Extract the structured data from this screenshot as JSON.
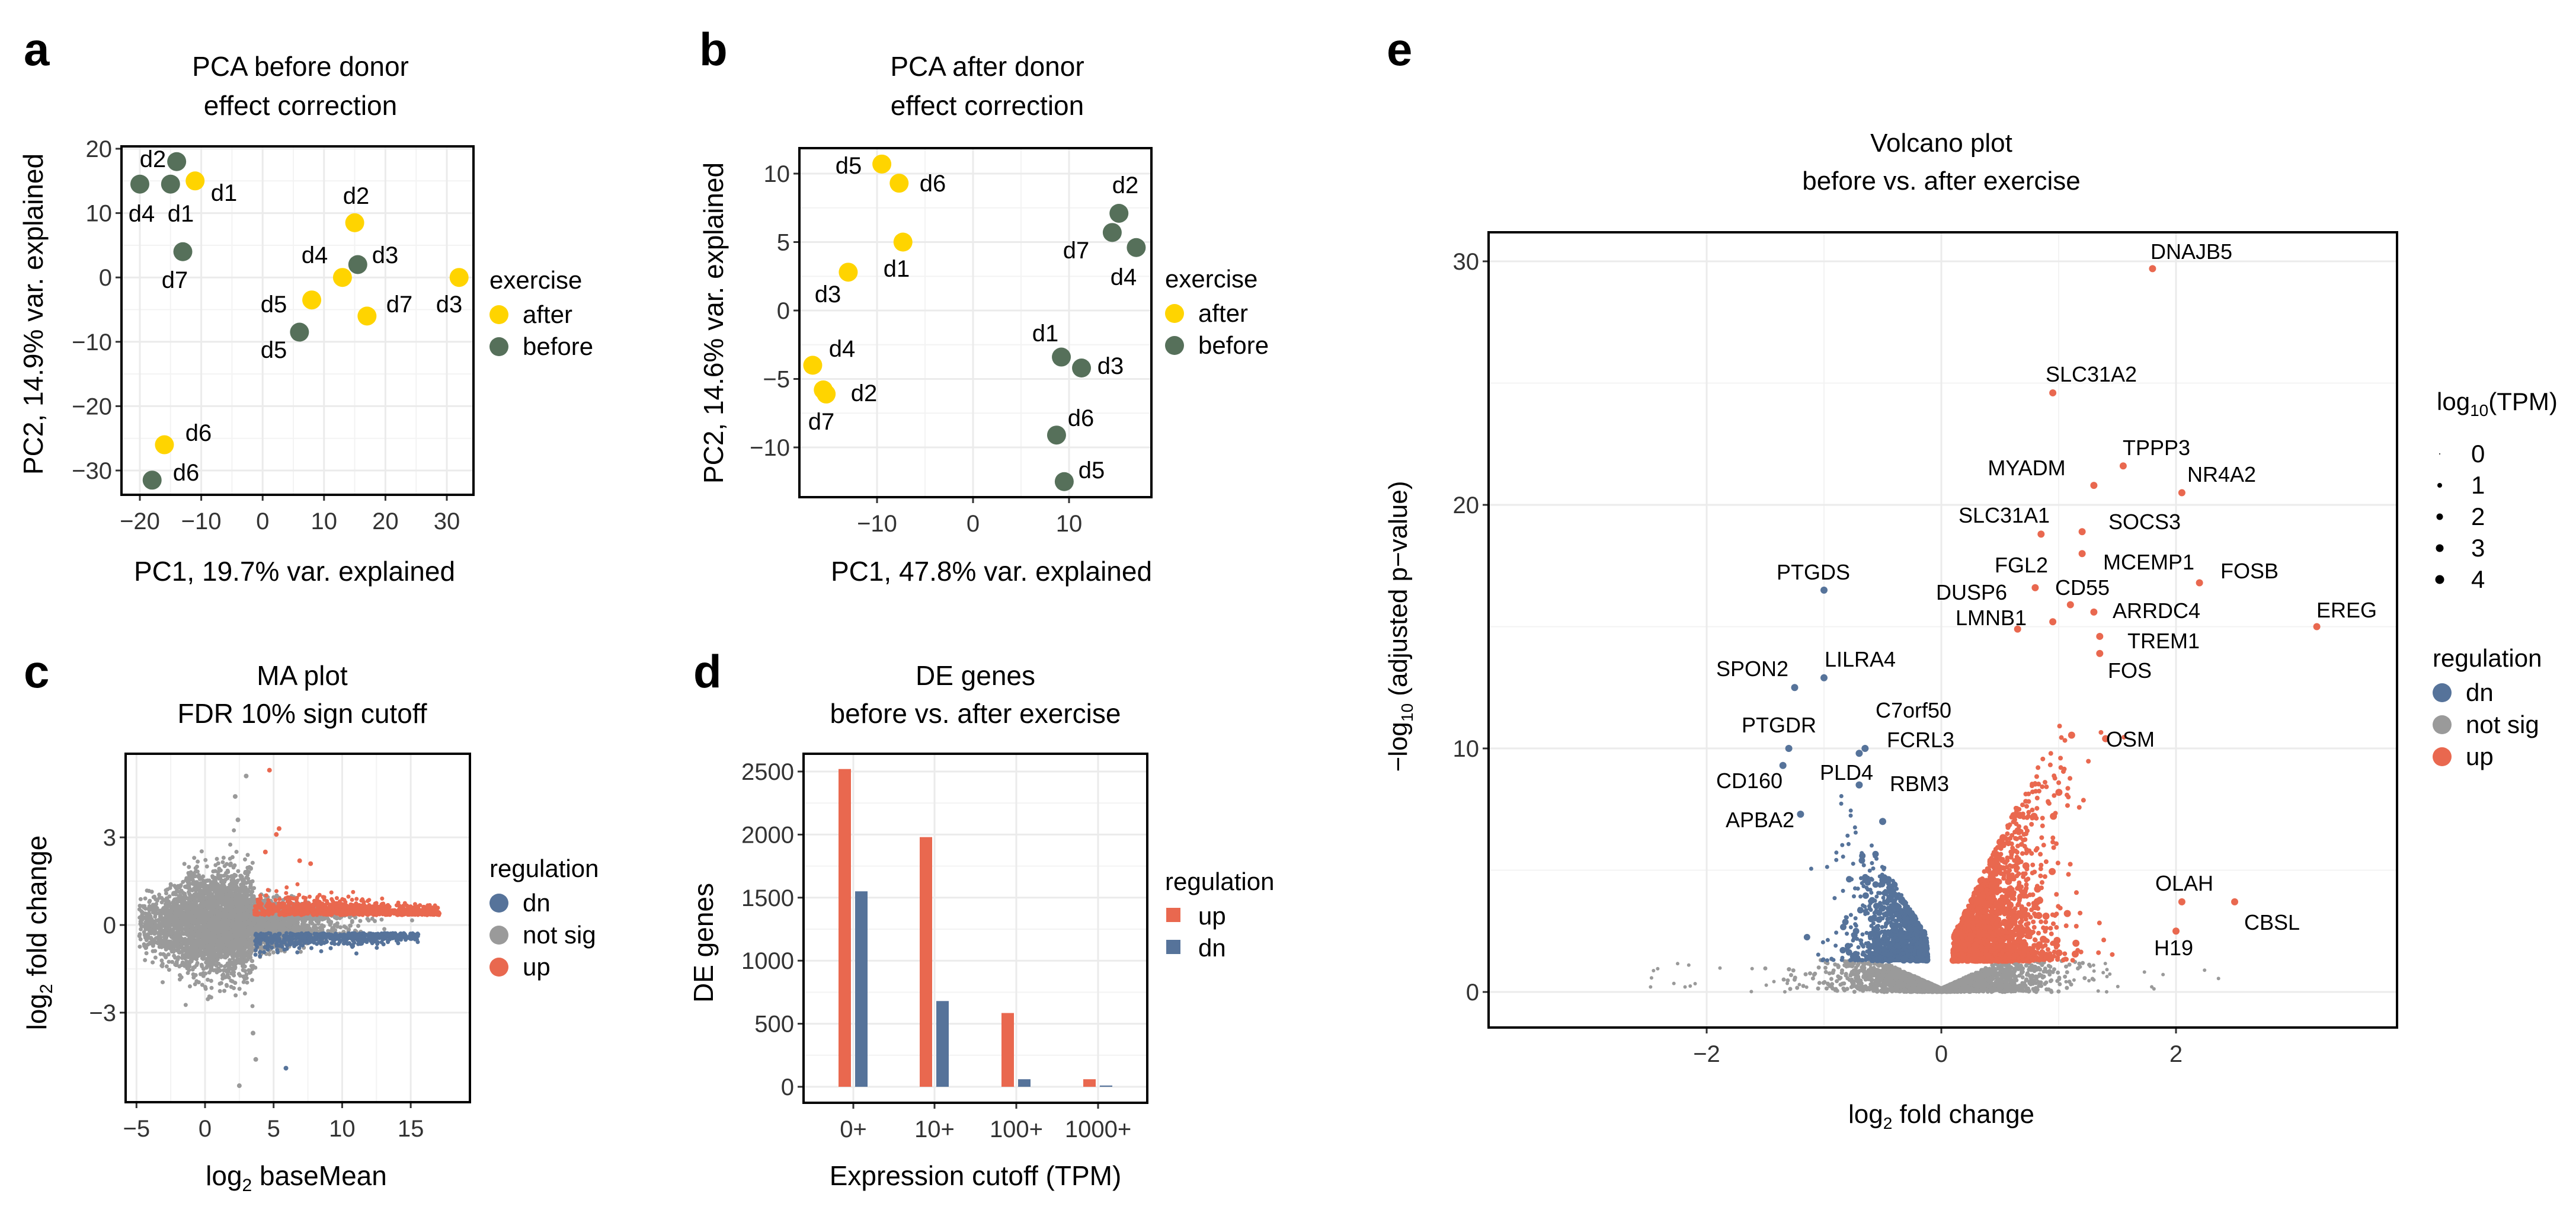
{
  "colors": {
    "after": "#FFD400",
    "before": "#56705A",
    "up": "#E9684F",
    "dn": "#56739A",
    "not_sig": "#9A9A9A",
    "grid": "#EBEBEB"
  },
  "chart_data": [
    {
      "panel": "a",
      "type": "scatter",
      "title": [
        "PCA before donor",
        "effect correction"
      ],
      "xlabel": "PC1, 19.7% var. explained",
      "ylabel": "PC2, 14.9% var. explained",
      "xlim": [
        -23,
        34
      ],
      "ylim": [
        -33.5,
        21
      ],
      "xticks": [
        {
          "v": -20,
          "t": "−20"
        },
        {
          "v": -10,
          "t": "−10"
        },
        {
          "v": 0,
          "t": "0"
        },
        {
          "v": 10,
          "t": "10"
        },
        {
          "v": 20,
          "t": "20"
        },
        {
          "v": 30,
          "t": "30"
        }
      ],
      "yticks": [
        {
          "v": 20,
          "t": "20"
        },
        {
          "v": 10,
          "t": "10"
        },
        {
          "v": 0,
          "t": "0"
        },
        {
          "v": -10,
          "t": "−10"
        },
        {
          "v": -20,
          "t": "−20"
        },
        {
          "v": -30,
          "t": "−30"
        }
      ],
      "grid": true,
      "legend": {
        "title": "exercise",
        "items": [
          "after",
          "before"
        ],
        "placement": "right"
      },
      "points": [
        {
          "label": "d2",
          "group": "before",
          "x": -14,
          "y": 18
        },
        {
          "label": "d4",
          "group": "before",
          "x": -20,
          "y": 14.5
        },
        {
          "label": "d1",
          "group": "before",
          "x": -15,
          "y": 14.5
        },
        {
          "label": "d7",
          "group": "before",
          "x": -13,
          "y": 4
        },
        {
          "label": "d3",
          "group": "before",
          "x": 15.5,
          "y": 2
        },
        {
          "label": "d5",
          "group": "before",
          "x": 6,
          "y": -8.5
        },
        {
          "label": "d6",
          "group": "before",
          "x": -18,
          "y": -31.5
        },
        {
          "label": "d1",
          "group": "after",
          "x": -11,
          "y": 15
        },
        {
          "label": "d2",
          "group": "after",
          "x": 15,
          "y": 8.5
        },
        {
          "label": "d4",
          "group": "after",
          "x": 13,
          "y": 0
        },
        {
          "label": "d5",
          "group": "after",
          "x": 8,
          "y": -3.5
        },
        {
          "label": "d7",
          "group": "after",
          "x": 17,
          "y": -6
        },
        {
          "label": "d3",
          "group": "after",
          "x": 32,
          "y": 0
        },
        {
          "label": "d6",
          "group": "after",
          "x": -16,
          "y": -26
        }
      ]
    },
    {
      "panel": "b",
      "type": "scatter",
      "title": [
        "PCA after donor",
        "effect correction"
      ],
      "xlabel": "PC1, 47.8% var. explained",
      "ylabel": "PC2, 14.6% var. explained",
      "xlim": [
        -18,
        18.5
      ],
      "ylim": [
        -13.5,
        12
      ],
      "xticks": [
        {
          "v": -10,
          "t": "−10"
        },
        {
          "v": 0,
          "t": "0"
        },
        {
          "v": 10,
          "t": "10"
        }
      ],
      "yticks": [
        {
          "v": 10,
          "t": "10"
        },
        {
          "v": 5,
          "t": "5"
        },
        {
          "v": 0,
          "t": "0"
        },
        {
          "v": -5,
          "t": "−5"
        },
        {
          "v": -10,
          "t": "−10"
        }
      ],
      "grid": true,
      "legend": {
        "title": "exercise",
        "items": [
          "after",
          "before"
        ],
        "placement": "right"
      },
      "points": [
        {
          "label": "d5",
          "group": "after",
          "x": -9.5,
          "y": 10.7
        },
        {
          "label": "d6",
          "group": "after",
          "x": -7.7,
          "y": 9.3
        },
        {
          "label": "d1",
          "group": "after",
          "x": -7.3,
          "y": 5
        },
        {
          "label": "d3",
          "group": "after",
          "x": -13,
          "y": 2.8
        },
        {
          "label": "d4",
          "group": "after",
          "x": -16.7,
          "y": -4
        },
        {
          "label": "d2",
          "group": "after",
          "x": -15.3,
          "y": -6.1
        },
        {
          "label": "d7",
          "group": "after",
          "x": -15.6,
          "y": -5.8
        },
        {
          "label": "d2",
          "group": "before",
          "x": 15.2,
          "y": 7.1
        },
        {
          "label": "d7",
          "group": "before",
          "x": 14.5,
          "y": 5.7
        },
        {
          "label": "d4",
          "group": "before",
          "x": 17,
          "y": 4.6
        },
        {
          "label": "d1",
          "group": "before",
          "x": 9.2,
          "y": -3.4
        },
        {
          "label": "d3",
          "group": "before",
          "x": 11.3,
          "y": -4.2
        },
        {
          "label": "d6",
          "group": "before",
          "x": 8.7,
          "y": -9.1
        },
        {
          "label": "d5",
          "group": "before",
          "x": 9.5,
          "y": -12.5
        }
      ]
    },
    {
      "panel": "c",
      "type": "scatter",
      "title": [
        "MA plot",
        "FDR 10% sign cutoff"
      ],
      "xlabel": "log2 baseMean",
      "ylabel": "log2 fold change",
      "xlim": [
        -5.8,
        19.3
      ],
      "ylim": [
        -6,
        5.9
      ],
      "xticks": [
        {
          "v": -5,
          "t": "−5"
        },
        {
          "v": 0,
          "t": "0"
        },
        {
          "v": 5,
          "t": "5"
        },
        {
          "v": 10,
          "t": "10"
        },
        {
          "v": 15,
          "t": "15"
        }
      ],
      "yticks": [
        {
          "v": 3,
          "t": "3"
        },
        {
          "v": 0,
          "t": "0"
        },
        {
          "v": -3,
          "t": "−3"
        }
      ],
      "grid": true,
      "legend": {
        "title": "regulation",
        "items": [
          "dn",
          "not sig",
          "up"
        ],
        "placement": "right"
      },
      "outliers": [
        {
          "x": 4.7,
          "y": 5.3,
          "reg": "up"
        },
        {
          "x": 3,
          "y": 5.1,
          "reg": "not sig"
        },
        {
          "x": 2.2,
          "y": 4.4,
          "reg": "not sig"
        },
        {
          "x": 2.4,
          "y": 3.6,
          "reg": "not sig"
        },
        {
          "x": 5.4,
          "y": 3.3,
          "reg": "up"
        },
        {
          "x": 5.2,
          "y": 3.1,
          "reg": "up"
        },
        {
          "x": 4.4,
          "y": 2.5,
          "reg": "up"
        },
        {
          "x": 6.9,
          "y": 2.2,
          "reg": "up"
        },
        {
          "x": 7.7,
          "y": 2.1,
          "reg": "up"
        },
        {
          "x": 3.5,
          "y": -3.7,
          "reg": "not sig"
        },
        {
          "x": 3.7,
          "y": -4.6,
          "reg": "not sig"
        },
        {
          "x": 5.9,
          "y": -4.9,
          "reg": "dn"
        },
        {
          "x": 2.5,
          "y": -5.5,
          "reg": "not sig"
        }
      ]
    },
    {
      "panel": "d",
      "type": "bar",
      "title": [
        "DE genes",
        "before vs. after exercise"
      ],
      "xlabel": "Expression cutoff (TPM)",
      "ylabel": "DE genes",
      "categories": [
        "0+",
        "10+",
        "100+",
        "1000+"
      ],
      "series": [
        {
          "name": "up",
          "values": [
            2520,
            1980,
            585,
            60
          ]
        },
        {
          "name": "dn",
          "values": [
            1550,
            680,
            60,
            10
          ]
        }
      ],
      "ylim": [
        -127,
        2640
      ],
      "yticks": [
        {
          "v": 2500,
          "t": "2500"
        },
        {
          "v": 2000,
          "t": "2000"
        },
        {
          "v": 1500,
          "t": "1500"
        },
        {
          "v": 1000,
          "t": "1000"
        },
        {
          "v": 500,
          "t": "500"
        },
        {
          "v": 0,
          "t": "0"
        }
      ],
      "grid": true,
      "legend": {
        "title": "regulation",
        "items": [
          "up",
          "dn"
        ],
        "placement": "right"
      }
    },
    {
      "panel": "e",
      "type": "scatter",
      "title": [
        "Volcano plot",
        "before vs. after exercise"
      ],
      "xlabel": "log2 fold change",
      "ylabel": "−log10 (adjusted p−value)",
      "xlim": [
        -3.86,
        3.88
      ],
      "ylim": [
        -1.46,
        31.2
      ],
      "xticks": [
        {
          "v": -2,
          "t": "−2"
        },
        {
          "v": 0,
          "t": "0"
        },
        {
          "v": 2,
          "t": "2"
        }
      ],
      "yticks": [
        {
          "v": 30,
          "t": "30"
        },
        {
          "v": 20,
          "t": "20"
        },
        {
          "v": 10,
          "t": "10"
        },
        {
          "v": 0,
          "t": "0"
        }
      ],
      "grid": true,
      "size_legend": {
        "title": "log10(TPM)",
        "items": [
          "0",
          "1",
          "2",
          "3",
          "4"
        ]
      },
      "legend": {
        "title": "regulation",
        "items": [
          "dn",
          "not sig",
          "up"
        ],
        "placement": "right"
      },
      "labeled_genes": [
        {
          "gene": "DNAJB5",
          "x": 1.8,
          "y": 29.7,
          "reg": "up"
        },
        {
          "gene": "SLC31A2",
          "x": 0.95,
          "y": 24.6,
          "reg": "up"
        },
        {
          "gene": "TPPP3",
          "x": 1.55,
          "y": 21.6,
          "reg": "up"
        },
        {
          "gene": "MYADM",
          "x": 1.3,
          "y": 20.8,
          "reg": "up"
        },
        {
          "gene": "NR4A2",
          "x": 2.05,
          "y": 20.5,
          "reg": "up"
        },
        {
          "gene": "SLC31A1",
          "x": 0.85,
          "y": 18.8,
          "reg": "up"
        },
        {
          "gene": "SOCS3",
          "x": 1.2,
          "y": 18.9,
          "reg": "up"
        },
        {
          "gene": "MCEMP1",
          "x": 1.2,
          "y": 18.0,
          "reg": "up"
        },
        {
          "gene": "FGL2",
          "x": 0.8,
          "y": 16.6,
          "reg": "up"
        },
        {
          "gene": "FOSB",
          "x": 2.2,
          "y": 16.8,
          "reg": "up"
        },
        {
          "gene": "CD55",
          "x": 1.1,
          "y": 15.9,
          "reg": "up"
        },
        {
          "gene": "DUSP6",
          "x": 0.95,
          "y": 15.2,
          "reg": "up"
        },
        {
          "gene": "ARRDC4",
          "x": 1.3,
          "y": 15.6,
          "reg": "up"
        },
        {
          "gene": "LMNB1",
          "x": 0.65,
          "y": 14.9,
          "reg": "up"
        },
        {
          "gene": "EREG",
          "x": 3.2,
          "y": 15.0,
          "reg": "up"
        },
        {
          "gene": "TREM1",
          "x": 1.35,
          "y": 14.6,
          "reg": "up"
        },
        {
          "gene": "FOS",
          "x": 1.35,
          "y": 13.9,
          "reg": "up"
        },
        {
          "gene": "OSM",
          "x": 1.4,
          "y": 10.4,
          "reg": "up"
        },
        {
          "gene": "PTGDS",
          "x": -1.0,
          "y": 16.5,
          "reg": "dn"
        },
        {
          "gene": "SPON2",
          "x": -1.25,
          "y": 12.5,
          "reg": "dn"
        },
        {
          "gene": "LILRA4",
          "x": -1.0,
          "y": 12.9,
          "reg": "dn"
        },
        {
          "gene": "C7orf50",
          "x": -0.65,
          "y": 10.0,
          "reg": "dn"
        },
        {
          "gene": "PTGDR",
          "x": -1.3,
          "y": 10.0,
          "reg": "dn"
        },
        {
          "gene": "FCRL3",
          "x": -0.7,
          "y": 9.8,
          "reg": "dn"
        },
        {
          "gene": "CD160",
          "x": -1.35,
          "y": 9.3,
          "reg": "dn"
        },
        {
          "gene": "PLD4",
          "x": -0.7,
          "y": 8.5,
          "reg": "dn"
        },
        {
          "gene": "RBM3",
          "x": -0.5,
          "y": 7.0,
          "reg": "dn"
        },
        {
          "gene": "APBA2",
          "x": -1.2,
          "y": 7.3,
          "reg": "dn"
        },
        {
          "gene": "OLAH",
          "x": 2.05,
          "y": 3.7,
          "reg": "up"
        },
        {
          "gene": "CBSL",
          "x": 2.5,
          "y": 3.7,
          "reg": "up"
        },
        {
          "gene": "H19",
          "x": 2.0,
          "y": 2.5,
          "reg": "up"
        }
      ]
    }
  ],
  "panel_labels": [
    "a",
    "b",
    "c",
    "d",
    "e"
  ]
}
